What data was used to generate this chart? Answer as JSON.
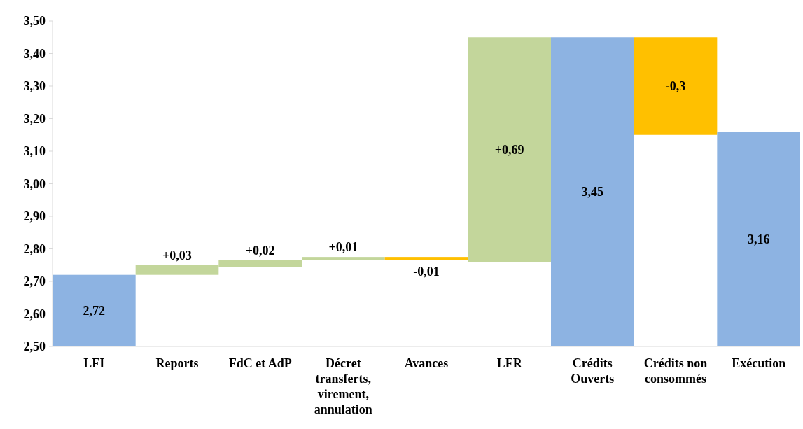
{
  "chart_data": {
    "type": "bar",
    "categories": [
      "LFI",
      "Reports",
      "FdC et AdP",
      "Décret transferts, virement, annulation",
      "Avances",
      "LFR",
      "Crédits Ouverts",
      "Crédits non consommés",
      "Exécution"
    ],
    "values": [
      2.72,
      0.03,
      0.02,
      0.01,
      -0.01,
      0.69,
      3.45,
      -0.3,
      3.16
    ],
    "base": [
      null,
      2.72,
      2.745,
      2.765,
      2.775,
      2.76,
      null,
      3.45,
      null
    ],
    "colors": [
      "#8db3e2",
      "#c3d69b",
      "#c3d69b",
      "#c3d69b",
      "#ffc000",
      "#c3d69b",
      "#8db3e2",
      "#ffc000",
      "#8db3e2"
    ],
    "value_labels": [
      "2,72",
      "+0,03",
      "+0,02",
      "+0,01",
      "-0,01",
      "+0,69",
      "3,45",
      "-0,3",
      "3,16"
    ],
    "ylim": [
      2.5,
      3.5
    ],
    "yticks": [
      {
        "value": 2.5,
        "label": "2,50"
      },
      {
        "value": 2.6,
        "label": "2,60"
      },
      {
        "value": 2.7,
        "label": "2,70"
      },
      {
        "value": 2.8,
        "label": "2,80"
      },
      {
        "value": 2.9,
        "label": "2,90"
      },
      {
        "value": 3.0,
        "label": "3,00"
      },
      {
        "value": 3.1,
        "label": "3,10"
      },
      {
        "value": 3.2,
        "label": "3,20"
      },
      {
        "value": 3.3,
        "label": "3,30"
      },
      {
        "value": 3.4,
        "label": "3,40"
      },
      {
        "value": 3.5,
        "label": "3,50"
      }
    ]
  }
}
